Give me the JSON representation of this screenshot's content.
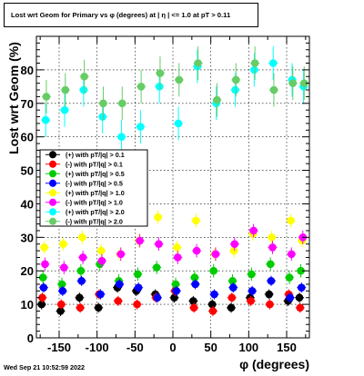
{
  "chart_data": {
    "type": "scatter",
    "title": "Lost wrt Geom for Primary vs φ (degrees) at | η | <= 1.0 at pT > 0.11",
    "xlabel": "φ (degrees)",
    "ylabel": "Lost wrt Geom (%)",
    "xlim": [
      -180,
      180
    ],
    "ylim": [
      0,
      90
    ],
    "x_ticks": [
      -150,
      -100,
      -50,
      0,
      50,
      100,
      150
    ],
    "y_ticks": [
      0,
      10,
      20,
      30,
      40,
      50,
      60,
      70,
      80
    ],
    "grid": true,
    "legend_position": "left-middle",
    "x": [
      -170,
      -145,
      -120,
      -95,
      -70,
      -45,
      -20,
      5,
      30,
      55,
      80,
      105,
      130,
      155,
      170
    ],
    "series": [
      {
        "name": "(+) with pT/|q| > 0.1",
        "color": "#000000",
        "values": [
          10,
          8,
          12,
          9,
          15,
          14,
          13,
          12,
          11,
          10,
          9,
          12,
          13,
          11,
          12
        ],
        "errors": [
          1.5,
          1.5,
          1.5,
          1.5,
          1.5,
          1.5,
          1.5,
          1.5,
          1.5,
          1.5,
          1.5,
          1.5,
          1.5,
          1.5,
          1.5
        ]
      },
      {
        "name": "(-) with pT/|q| > 0.1",
        "color": "#ff0000",
        "values": [
          12,
          10,
          9,
          13,
          11,
          10,
          12,
          14,
          9,
          8,
          12,
          11,
          10,
          13,
          9
        ],
        "errors": [
          1.5,
          1.5,
          1.5,
          1.5,
          1.5,
          1.5,
          1.5,
          1.5,
          1.5,
          1.5,
          1.5,
          1.5,
          1.5,
          1.5,
          1.5
        ]
      },
      {
        "name": "(+) with pT/|q| > 0.5",
        "color": "#00cc00",
        "values": [
          18,
          16,
          20,
          22,
          17,
          19,
          21,
          16,
          18,
          20,
          17,
          19,
          22,
          18,
          20
        ],
        "errors": [
          2,
          2,
          2,
          2,
          2,
          2,
          2,
          2,
          2,
          2,
          2,
          2,
          2,
          2,
          2
        ]
      },
      {
        "name": "(-) with pT/|q| > 0.5",
        "color": "#0000ff",
        "values": [
          15,
          14,
          17,
          13,
          16,
          15,
          12,
          14,
          16,
          13,
          15,
          14,
          17,
          12,
          15
        ],
        "errors": [
          1.5,
          1.5,
          1.5,
          1.5,
          1.5,
          1.5,
          1.5,
          1.5,
          1.5,
          1.5,
          1.5,
          1.5,
          1.5,
          1.5,
          1.5
        ]
      },
      {
        "name": "(+) with pT/|q| > 1.0",
        "color": "#ffff00",
        "values": [
          27,
          28,
          30,
          26,
          25,
          29,
          36,
          27,
          35,
          25,
          26,
          31,
          30,
          35,
          29
        ],
        "errors": [
          2,
          2,
          2,
          2,
          2,
          2,
          2,
          2,
          2,
          2,
          2,
          2,
          2,
          2,
          2
        ]
      },
      {
        "name": "(-) with pT/|q| > 1.0",
        "color": "#ff00ff",
        "values": [
          22,
          21,
          24,
          23,
          25,
          29,
          28,
          24,
          26,
          25,
          28,
          32,
          27,
          25,
          30
        ],
        "errors": [
          2,
          2,
          2,
          2,
          2,
          2,
          2,
          2,
          2,
          2,
          2,
          2,
          2,
          2,
          2
        ]
      },
      {
        "name": "(+) with pT/|q| > 2.0",
        "color": "#00ffff",
        "values": [
          65,
          68,
          74,
          66,
          60,
          63,
          75,
          64,
          81,
          70,
          74,
          80,
          82,
          77,
          75
        ],
        "errors": [
          5,
          5,
          5,
          5,
          5,
          5,
          5,
          5,
          5,
          5,
          5,
          5,
          5,
          5,
          5
        ]
      },
      {
        "name": "(-) with pT/|q| > 2.0",
        "color": "#66cc66",
        "values": [
          72,
          74,
          78,
          70,
          70,
          75,
          79,
          77,
          82,
          71,
          77,
          82,
          74,
          76,
          76
        ],
        "errors": [
          5,
          5,
          5,
          5,
          5,
          5,
          5,
          5,
          5,
          5,
          5,
          5,
          5,
          5,
          5
        ]
      }
    ]
  },
  "timestamp": "Wed Sep 21 10:52:59 2022"
}
